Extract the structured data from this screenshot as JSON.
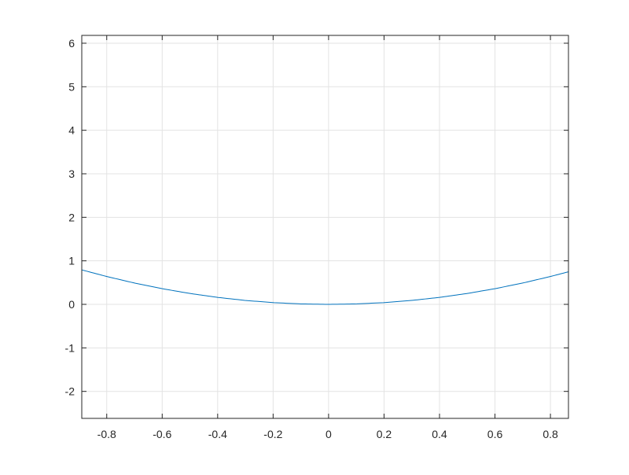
{
  "chart_data": {
    "type": "line",
    "title": "",
    "xlabel": "",
    "ylabel": "",
    "xlim": [
      -0.89,
      0.865
    ],
    "ylim": [
      -2.62,
      6.18
    ],
    "xticks": [
      -0.8,
      -0.6,
      -0.4,
      -0.2,
      0,
      0.2,
      0.4,
      0.6,
      0.8
    ],
    "xtick_labels": [
      "-0.8",
      "-0.6",
      "-0.4",
      "-0.2",
      "0",
      "0.2",
      "0.4",
      "0.6",
      "0.8"
    ],
    "yticks": [
      -2,
      -1,
      0,
      1,
      2,
      3,
      4,
      5,
      6
    ],
    "ytick_labels": [
      "-2",
      "-1",
      "0",
      "1",
      "2",
      "3",
      "4",
      "5",
      "6"
    ],
    "grid": true,
    "series": [
      {
        "color": "#0072BD",
        "x": [
          -0.89,
          -0.8,
          -0.7,
          -0.6,
          -0.5,
          -0.4,
          -0.3,
          -0.2,
          -0.1,
          0,
          0.1,
          0.2,
          0.3,
          0.4,
          0.5,
          0.6,
          0.7,
          0.8,
          0.865
        ],
        "y": [
          0.792,
          0.64,
          0.49,
          0.36,
          0.25,
          0.16,
          0.09,
          0.04,
          0.01,
          0,
          0.01,
          0.04,
          0.09,
          0.16,
          0.25,
          0.36,
          0.49,
          0.64,
          0.748
        ]
      }
    ]
  }
}
